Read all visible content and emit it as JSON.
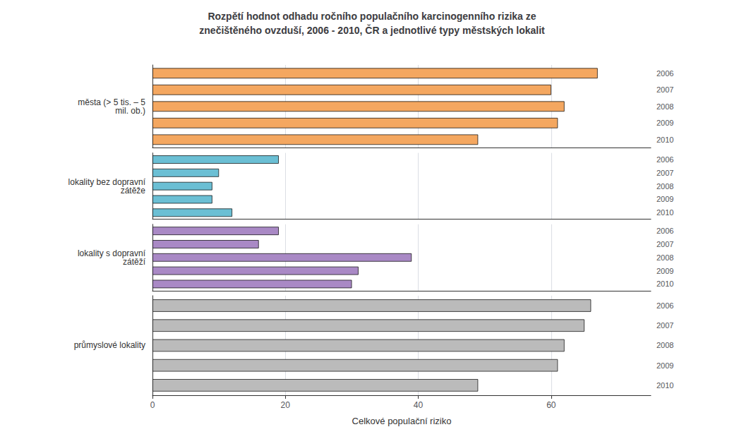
{
  "chart_data": [
    {
      "type": "bar",
      "orientation": "horizontal",
      "title": "Rozpětí hodnot odhadu ročního populačního karcinogenního rizika ze\nznečištěného ovzduší, 2006 - 2010, ČR a jednotlivé typy městských lokalit",
      "ylabel": "města (> 5 tis. – 5\nmil. ob.)",
      "categories": [
        "2006",
        "2007",
        "2008",
        "2009",
        "2010"
      ],
      "values": [
        67,
        60,
        62,
        61,
        49
      ],
      "color": "#F4A760",
      "xlim": [
        0,
        75
      ],
      "xticks": [
        0,
        20,
        40,
        60
      ],
      "grid": true,
      "tick_labels": "y"
    },
    {
      "type": "bar",
      "orientation": "horizontal",
      "ylabel": "lokality bez dopravní\nzátěže",
      "categories": [
        "2006",
        "2007",
        "2008",
        "2009",
        "2010"
      ],
      "values": [
        19,
        10,
        9,
        9,
        12
      ],
      "color": "#6BBFD4",
      "xlim": [
        0,
        75
      ],
      "xticks": [
        0,
        20,
        40,
        60
      ],
      "grid": true,
      "tick_labels": "y"
    },
    {
      "type": "bar",
      "orientation": "horizontal",
      "ylabel": "lokality s dopravní\nzátěží",
      "categories": [
        "2006",
        "2007",
        "2008",
        "2009",
        "2010"
      ],
      "values": [
        19,
        16,
        39,
        31,
        30
      ],
      "color": "#A989C5",
      "xlim": [
        0,
        75
      ],
      "xticks": [
        0,
        20,
        40,
        60
      ],
      "grid": true,
      "tick_labels": "y"
    },
    {
      "type": "bar",
      "orientation": "horizontal",
      "ylabel": "průmyslové lokality",
      "xlabel": "Celkové populační riziko",
      "categories": [
        "2006",
        "2007",
        "2008",
        "2009",
        "2010"
      ],
      "values": [
        66,
        65,
        62,
        61,
        49
      ],
      "color": "#BBBBBB",
      "xlim": [
        0,
        75
      ],
      "xticks": [
        0,
        20,
        40,
        60
      ],
      "grid": true
    }
  ]
}
